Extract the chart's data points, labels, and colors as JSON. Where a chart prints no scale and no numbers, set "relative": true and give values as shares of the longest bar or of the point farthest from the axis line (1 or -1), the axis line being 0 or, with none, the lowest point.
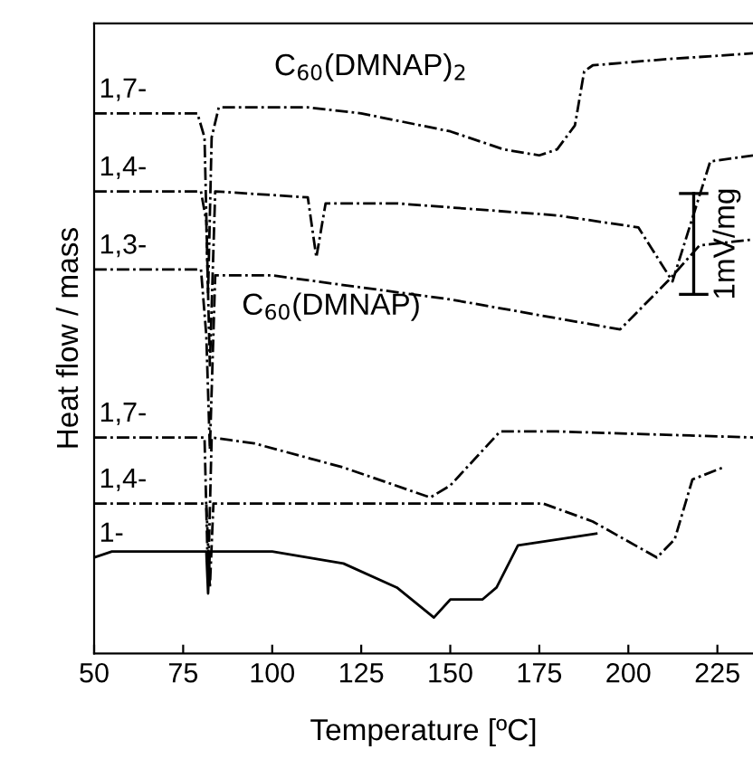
{
  "chart_data": {
    "type": "line",
    "relative": true,
    "xlabel": "Temperature [ºC]",
    "ylabel": "Heat flow / mass",
    "xlim": [
      50,
      235
    ],
    "xticks": [
      50,
      75,
      100,
      125,
      150,
      175,
      200,
      225
    ],
    "annotations": [
      "C$_{60}$(DMNAP)$_{2}$",
      "C$_{60}$(DMNAP)",
      "1mV/mg"
    ],
    "grid": false,
    "legend": false,
    "tick_labels": "x",
    "series": [
      {
        "name": "1,7-",
        "color": "#000000",
        "line_style": "dashed",
        "x": [
          50,
          79,
          81,
          82,
          83,
          85,
          100,
          110,
          125,
          150,
          165,
          175,
          180,
          185,
          187.6,
          190,
          210,
          235
        ],
        "values": [
          0.9,
          0.9,
          0.86,
          0.6,
          0.86,
          0.91,
          0.91,
          0.91,
          0.9,
          0.87,
          0.84,
          0.83,
          0.84,
          0.88,
          0.97,
          0.98,
          0.99,
          1
        ]
      },
      {
        "name": "1,4-",
        "color": "#000000",
        "line_style": "dashed",
        "x": [
          50,
          80,
          81.5,
          82.5,
          84,
          110,
          112.4,
          115,
          135,
          180,
          202.8,
          212.4,
          223,
          235
        ],
        "values": [
          0.77,
          0.77,
          0.72,
          0.48,
          0.77,
          0.76,
          0.66,
          0.75,
          0.75,
          0.73,
          0.71,
          0.62,
          0.82,
          0.83
        ]
      },
      {
        "name": "1,3-",
        "color": "#000000",
        "line_style": "dashed",
        "x": [
          50,
          80,
          81.5,
          82.5,
          84,
          100,
          150,
          197.7,
          211,
          220,
          235
        ],
        "values": [
          0.64,
          0.64,
          0.53,
          0.34,
          0.63,
          0.63,
          0.59,
          0.54,
          0.62,
          0.68,
          0.69
        ]
      },
      {
        "name": "1,7-",
        "color": "#000000",
        "line_style": "dashed",
        "x": [
          50,
          81,
          82,
          83,
          95,
          120,
          144.4,
          150,
          164,
          180,
          235
        ],
        "values": [
          0.36,
          0.36,
          0.12,
          0.36,
          0.35,
          0.31,
          0.26,
          0.28,
          0.37,
          0.37,
          0.36
        ]
      },
      {
        "name": "1,4-",
        "color": "#000000",
        "line_style": "dashed",
        "x": [
          50,
          81.5,
          82.5,
          83.5,
          150,
          176,
          190,
          208,
          213,
          218,
          226.6
        ],
        "values": [
          0.25,
          0.25,
          0.11,
          0.25,
          0.25,
          0.25,
          0.22,
          0.16,
          0.19,
          0.29,
          0.31
        ]
      },
      {
        "name": "1-",
        "color": "#000000",
        "line_style": "solid",
        "x": [
          50,
          55,
          81.5,
          82,
          82.5,
          100,
          120,
          135,
          145.4,
          150,
          159,
          163,
          169,
          180,
          191
        ],
        "values": [
          0.16,
          0.17,
          0.17,
          0.1,
          0.17,
          0.17,
          0.15,
          0.11,
          0.06,
          0.09,
          0.09,
          0.11,
          0.18,
          0.19,
          0.2
        ]
      }
    ]
  }
}
